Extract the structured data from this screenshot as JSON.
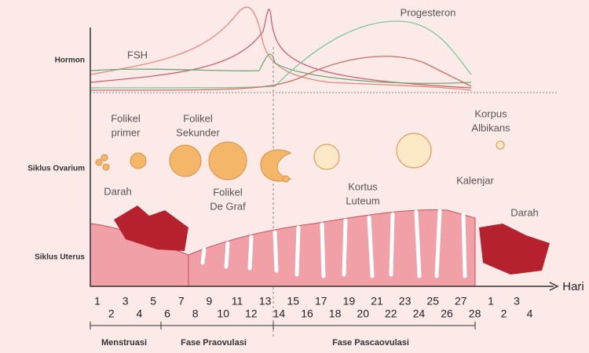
{
  "rows": {
    "hormon": "Hormon",
    "ovarium": "Siklus Ovarium",
    "uterus": "Siklus Uterus"
  },
  "hormones": {
    "fsh": "FSH",
    "progesteron": "Progesteron"
  },
  "ovary": {
    "primer": [
      "Folikel",
      "primer"
    ],
    "sekunder": [
      "Folikel",
      "Sekunder"
    ],
    "degraf": [
      "Folikel",
      "De Graf"
    ],
    "luteum": [
      "Kortus",
      "Luteum"
    ],
    "albikans": [
      "Korpus",
      "Albikans"
    ]
  },
  "uterus": {
    "darah_left": "Darah",
    "darah_right": "Darah",
    "kalenjar": "Kalenjar"
  },
  "axis": {
    "unit": "Hari",
    "days": [
      "1",
      "2",
      "3",
      "4",
      "5",
      "6",
      "7",
      "8",
      "9",
      "10",
      "11",
      "12",
      "13",
      "14",
      "15",
      "16",
      "17",
      "18",
      "19",
      "20",
      "21",
      "22",
      "23",
      "24",
      "25",
      "26",
      "27",
      "28",
      "1",
      "2",
      "3",
      "4"
    ]
  },
  "phases": [
    "Menstruasi",
    "Fase Praovulasi",
    "Fase Pascaovulasi"
  ]
}
